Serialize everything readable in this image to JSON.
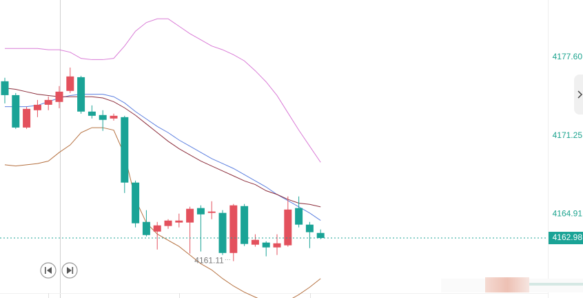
{
  "chart_data": {
    "type": "candlestick",
    "ylim": [
      4158.13,
      4182.22
    ],
    "yticks": [
      {
        "value": 4177.6,
        "label": "4177.60"
      },
      4171.25,
      4164.91
    ],
    "grid": false,
    "up_color": "#e3515d",
    "down_color": "#1aa396",
    "open": [
      4175.65,
      4174.53,
      4171.91,
      4173.31,
      4173.75,
      4173.98,
      4174.87,
      4175.98,
      4173.2,
      4172.92,
      4172.64,
      4172.75,
      4167.46,
      4164.28,
      4163.5,
      4163.95,
      4164.23,
      4164.23,
      4165.4,
      4165.01,
      4165.01,
      4161.77,
      4165.56,
      4162.44,
      4162.61,
      4162.22,
      4162.39,
      4165.4,
      4164.06,
      4163.39
    ],
    "high": [
      4175.93,
      4174.7,
      4173.59,
      4174.14,
      4174.42,
      4175.26,
      4176.76,
      4176.09,
      4173.7,
      4173.31,
      4173.03,
      4172.86,
      4167.62,
      4165.23,
      4164.28,
      4164.5,
      4164.95,
      4165.51,
      4165.62,
      4165.95,
      4165.23,
      4165.73,
      4165.73,
      4163.28,
      4162.72,
      4163.28,
      4166.34,
      4166.34,
      4164.28,
      4163.67
    ],
    "low": [
      4173.86,
      4171.8,
      4171.8,
      4172.75,
      4173.31,
      4173.47,
      4174.7,
      4173.03,
      4172.64,
      4171.64,
      4172.47,
      4166.62,
      4163.84,
      4163.11,
      4162.05,
      4163.72,
      4163.84,
      4161.72,
      4161.89,
      4164.5,
      4161.61,
      4161.11,
      4162.33,
      4162.28,
      4161.5,
      4161.61,
      4162.28,
      4163.84,
      4162.16,
      4162.89
    ],
    "close": [
      4174.53,
      4171.91,
      4173.42,
      4173.75,
      4174.14,
      4174.81,
      4176.04,
      4173.2,
      4172.86,
      4172.53,
      4172.86,
      4167.46,
      4164.17,
      4163.22,
      4164.0,
      4164.39,
      4164.39,
      4165.34,
      4164.89,
      4165.12,
      4161.77,
      4165.62,
      4162.5,
      4162.83,
      4162.22,
      4162.55,
      4165.28,
      4164.06,
      4163.45,
      4162.98
    ],
    "series": [
      {
        "color": "#5b7fe0",
        "values": [
          4173.6,
          4173.6,
          4173.6,
          4173.7,
          4174.0,
          4174.3,
          4174.5,
          4174.6,
          4174.6,
          4174.6,
          4174.4,
          4173.9,
          4173.2,
          4172.6,
          4172.0,
          4171.5,
          4170.9,
          4170.4,
          4169.9,
          4169.4,
          4169.0,
          4168.6,
          4168.1,
          4167.6,
          4167.1,
          4166.5,
          4166.0,
          4165.5,
          4165.0,
          4164.4
        ]
      },
      {
        "color": "#8b2c3a",
        "values": [
          4175.1,
          4175.0,
          4174.8,
          4174.6,
          4174.5,
          4174.4,
          4174.4,
          4174.4,
          4174.4,
          4174.3,
          4174.0,
          4173.5,
          4172.9,
          4172.2,
          4171.5,
          4170.8,
          4170.2,
          4169.7,
          4169.2,
          4168.8,
          4168.4,
          4168.0,
          4167.6,
          4167.3,
          4166.8,
          4166.5,
          4166.1,
          4165.8,
          4165.7,
          4165.5
        ]
      },
      {
        "color": "#d97ad6",
        "values": [
          4178.3,
          4178.3,
          4178.3,
          4178.3,
          4178.2,
          4178.2,
          4178.0,
          4177.5,
          4177.4,
          4177.4,
          4177.5,
          4178.5,
          4179.7,
          4180.4,
          4180.7,
          4180.7,
          4180.1,
          4179.5,
          4179.0,
          4178.5,
          4178.2,
          4177.8,
          4177.3,
          4176.5,
          4175.6,
          4174.5,
          4173.1,
          4171.7,
          4170.4,
          4169.1
        ]
      },
      {
        "color": "#b5703f",
        "values": [
          4168.9,
          4168.8,
          4168.9,
          4169.0,
          4169.2,
          4169.9,
          4170.5,
          4171.5,
          4171.9,
          4171.9,
          4171.7,
          4169.7,
          4166.1,
          4164.2,
          4163.3,
          4162.8,
          4162.3,
          4161.6,
          4160.9,
          4160.4,
          4159.7,
          4159.1,
          4158.6,
          4158.2,
          4157.8,
          4157.7,
          4157.9,
          4158.4,
          4159.0,
          4159.7
        ]
      }
    ],
    "last_price": 4162.98,
    "annotation": 4161.11
  }
}
